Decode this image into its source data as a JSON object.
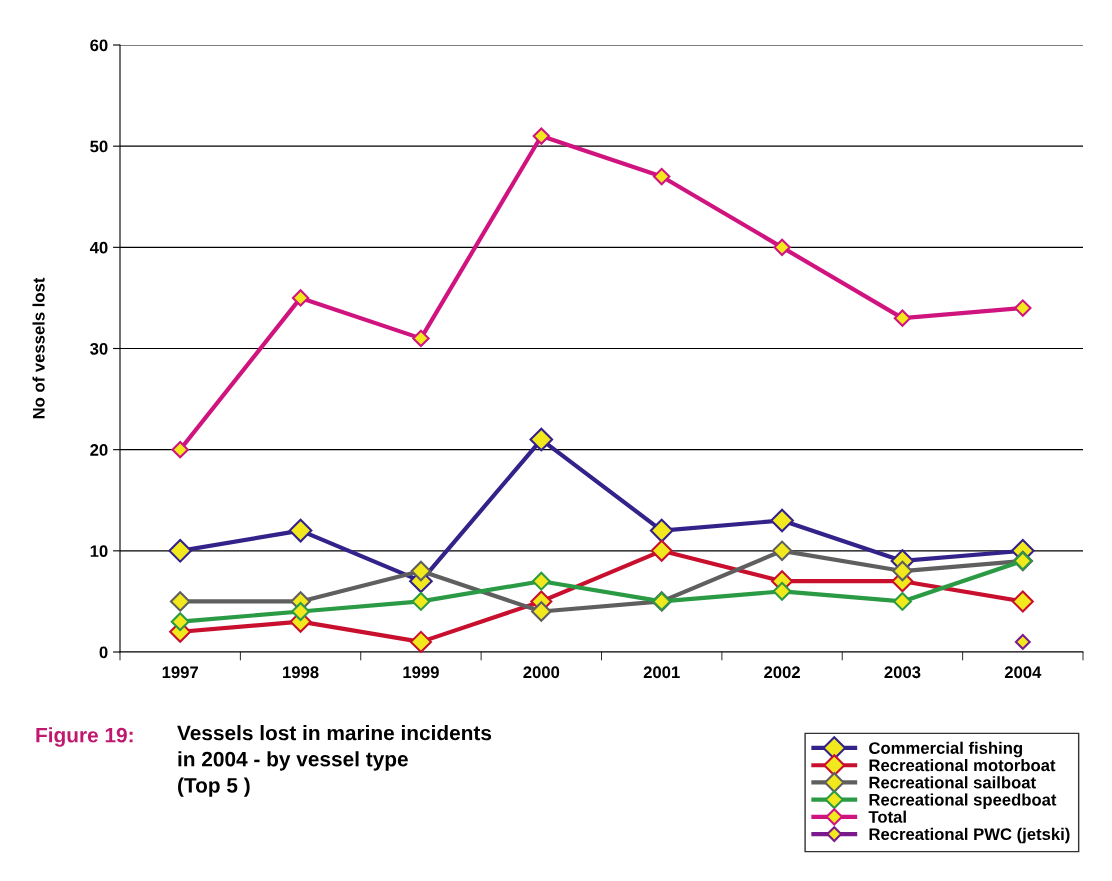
{
  "chart_data": {
    "type": "line",
    "title": "Vessels lost in marine incidents\nin 2004 - by vessel type\n(Top 5 )",
    "ylabel": "No of vessels lost",
    "annotations": [
      "Figure 19:"
    ],
    "categories": [
      "1997",
      "1998",
      "1999",
      "2000",
      "2001",
      "2002",
      "2003",
      "2004"
    ],
    "series": [
      {
        "name": "Commercial fishing",
        "color": "#33228a",
        "values": [
          10,
          12,
          7,
          21,
          12,
          13,
          9,
          10
        ]
      },
      {
        "name": "Recreational motorboat",
        "color": "#c8102e",
        "values": [
          2,
          3,
          1,
          5,
          10,
          7,
          7,
          5
        ]
      },
      {
        "name": "Recreational sailboat",
        "color": "#5f5f5f",
        "values": [
          5,
          5,
          8,
          4,
          5,
          10,
          8,
          9
        ]
      },
      {
        "name": "Recreational speedboat",
        "color": "#2a9a44",
        "values": [
          3,
          4,
          5,
          7,
          5,
          6,
          5,
          9
        ]
      },
      {
        "name": "Total",
        "color": "#d0147f",
        "values": [
          20,
          35,
          31,
          51,
          47,
          40,
          33,
          34
        ]
      },
      {
        "name": "Recreational PWC (jetski)",
        "color": "#7b1a8c",
        "values": [
          null,
          null,
          null,
          null,
          null,
          null,
          null,
          1
        ]
      }
    ],
    "ylim": [
      0,
      60
    ],
    "yticks": [
      0,
      10,
      20,
      30,
      40,
      50,
      60
    ],
    "grid": "y",
    "legend": "bottom right",
    "marker": "diamond",
    "line_style": "solid"
  }
}
